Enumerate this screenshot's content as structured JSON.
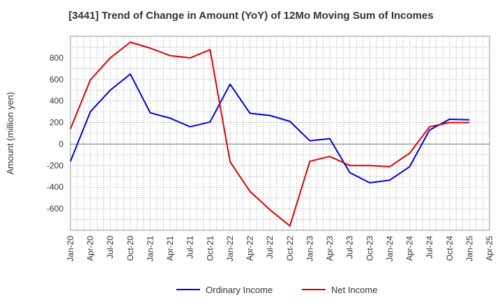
{
  "chart_data": {
    "type": "line",
    "title": "[3441]  Trend of Change in Amount (YoY) of 12Mo Moving Sum of Incomes",
    "xlabel": "",
    "ylabel": "Amount (million yen)",
    "ylim": [
      -800,
      1000
    ],
    "yticks": [
      -600,
      -400,
      -200,
      0,
      200,
      400,
      600,
      800
    ],
    "x_tick_labels": [
      "Jan-20",
      "Apr-20",
      "Jul-20",
      "Oct-20",
      "Jan-21",
      "Apr-21",
      "Jul-21",
      "Oct-21",
      "Jan-22",
      "Apr-22",
      "Jul-22",
      "Oct-22",
      "Jan-23",
      "Apr-23",
      "Jul-23",
      "Oct-23",
      "Jan-24",
      "Apr-24",
      "Jul-24",
      "Oct-24",
      "Jan-25",
      "Apr-25"
    ],
    "categories": [
      "Jan-20",
      "Apr-20",
      "Jul-20",
      "Oct-20",
      "Jan-21",
      "Apr-21",
      "Jul-21",
      "Oct-21",
      "Jan-22",
      "Apr-22",
      "Jul-22",
      "Oct-22",
      "Jan-23",
      "Apr-23",
      "Jul-23",
      "Oct-23",
      "Jan-24",
      "Apr-24",
      "Jul-24",
      "Oct-24",
      "Jan-25"
    ],
    "grid": true,
    "legend_position": "bottom",
    "series": [
      {
        "name": "Ordinary Income",
        "color": "#0000dd",
        "values": [
          -160,
          300,
          500,
          650,
          290,
          240,
          160,
          205,
          555,
          285,
          265,
          210,
          30,
          50,
          -265,
          -360,
          -335,
          -210,
          130,
          230,
          225
        ]
      },
      {
        "name": "Net Income",
        "color": "#dd0000",
        "values": [
          140,
          595,
          800,
          945,
          890,
          820,
          800,
          875,
          -165,
          -440,
          -610,
          -760,
          -160,
          -115,
          -200,
          -200,
          -210,
          -85,
          160,
          200,
          200
        ]
      }
    ]
  }
}
